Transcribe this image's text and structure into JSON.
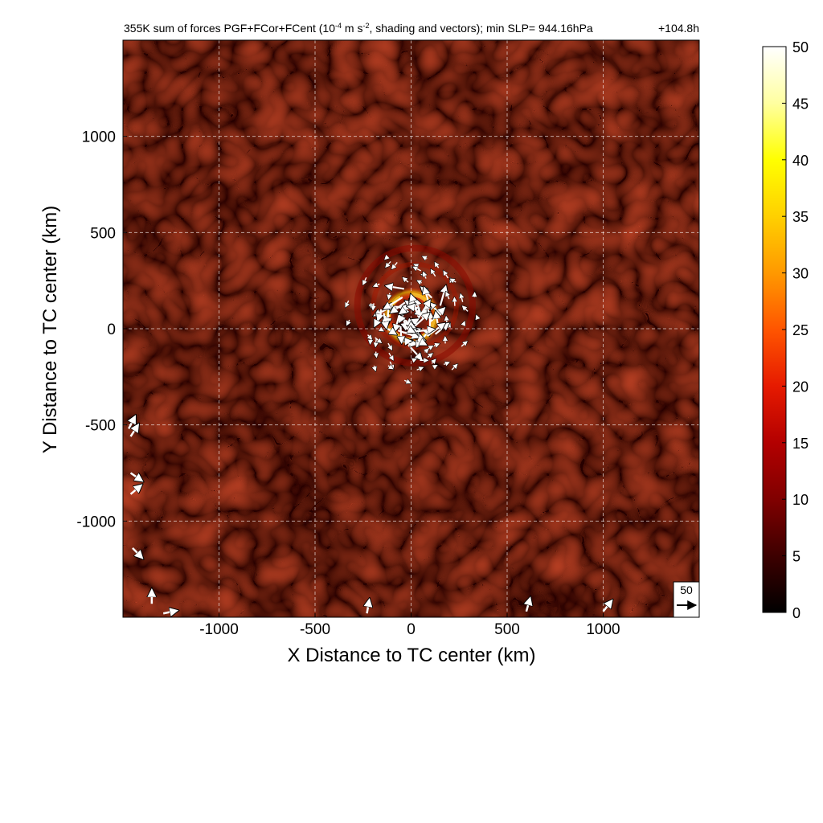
{
  "chart_data": {
    "type": "heatmap",
    "title_main": "355K sum of forces PGF+FCor+FCent (10",
    "title_exp": "-4",
    "title_mid": " m s",
    "title_exp2": "-2",
    "title_end": ", shading and vectors); min SLP= 944.16hPa",
    "time_label": "+104.8h",
    "xlabel": "X Distance to TC center (km)",
    "ylabel": "Y Distance to TC center (km)",
    "xlim": [
      -1500,
      1500
    ],
    "ylim": [
      -1500,
      1500
    ],
    "x_ticks": [
      -1000,
      -500,
      0,
      500,
      1000
    ],
    "y_ticks": [
      -1000,
      -500,
      0,
      500,
      1000
    ],
    "x_tick_labels": [
      "-1000",
      "-500",
      "0",
      "500",
      "1000"
    ],
    "y_tick_labels": [
      "-1000",
      "-500",
      "0",
      "500",
      "1000"
    ],
    "grid": true,
    "colorbar": {
      "min": 0,
      "max": 50,
      "ticks": [
        0,
        5,
        10,
        15,
        20,
        25,
        30,
        35,
        40,
        45,
        50
      ],
      "tick_labels": [
        "0",
        "5",
        "10",
        "15",
        "20",
        "25",
        "30",
        "35",
        "40",
        "45",
        "50"
      ],
      "colors": [
        "#000000",
        "#3d0000",
        "#800000",
        "#b30000",
        "#e61a00",
        "#ff5500",
        "#ff9900",
        "#ffd000",
        "#ffff00",
        "#ffffa0",
        "#ffffff"
      ]
    },
    "reference_vector": {
      "label": "50",
      "value": 50
    },
    "field_features": [
      {
        "feature": "eyewall ring",
        "center_km": [
          0,
          60
        ],
        "radius_km": 130,
        "peak_value": 50
      },
      {
        "feature": "outer rainband",
        "center_km": [
          20,
          120
        ],
        "radius_km": 300,
        "peak_value": 18
      },
      {
        "feature": "background turbulence",
        "peak_value": 10
      }
    ]
  }
}
